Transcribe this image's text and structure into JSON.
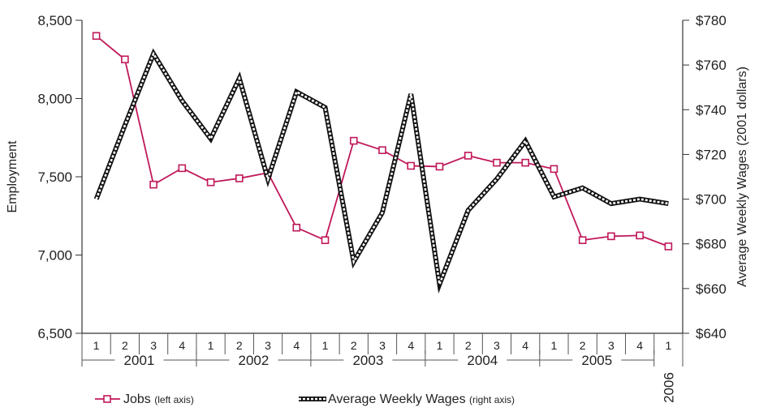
{
  "chart_data": {
    "type": "line",
    "quarters": [
      "1",
      "2",
      "3",
      "4",
      "1",
      "2",
      "3",
      "4",
      "1",
      "2",
      "3",
      "4",
      "1",
      "2",
      "3",
      "4",
      "1",
      "2",
      "3",
      "4",
      "1"
    ],
    "years": [
      {
        "label": "2001",
        "start": 0,
        "end": 3
      },
      {
        "label": "2002",
        "start": 4,
        "end": 7
      },
      {
        "label": "2003",
        "start": 8,
        "end": 11
      },
      {
        "label": "2004",
        "start": 12,
        "end": 15
      },
      {
        "label": "2005",
        "start": 16,
        "end": 19
      },
      {
        "label": "2006",
        "start": 20,
        "end": 20,
        "vertical": true
      }
    ],
    "y_left": {
      "label": "Employment",
      "range": [
        6500,
        8500
      ],
      "ticks": [
        6500,
        7000,
        7500,
        8000,
        8500
      ],
      "tick_labels": [
        "6,500",
        "7,000",
        "7,500",
        "8,000",
        "8,500"
      ]
    },
    "y_right": {
      "label": "Average Weekly Wages (2001 dollars)",
      "range": [
        640,
        780
      ],
      "ticks": [
        640,
        660,
        680,
        700,
        720,
        740,
        760,
        780
      ],
      "tick_labels": [
        "$640",
        "$660",
        "$680",
        "$700",
        "$720",
        "$740",
        "$760",
        "$780"
      ]
    },
    "series": [
      {
        "name": "Jobs",
        "note": "(left axis)",
        "axis": "left",
        "color": "#c0185a",
        "values": [
          8400,
          8250,
          7450,
          7555,
          7465,
          7490,
          7525,
          7175,
          7095,
          7730,
          7670,
          7570,
          7565,
          7635,
          7590,
          7590,
          7550,
          7095,
          7120,
          7125,
          7055
        ]
      },
      {
        "name": "Average Weekly Wages",
        "note": "(right axis)",
        "axis": "right",
        "color": "#111111",
        "values": [
          700,
          733,
          765,
          744,
          727,
          754,
          709,
          748,
          741,
          672,
          694,
          747,
          662,
          695,
          709,
          726,
          701,
          705,
          698,
          700,
          698
        ]
      }
    ],
    "legend": "bottom"
  }
}
